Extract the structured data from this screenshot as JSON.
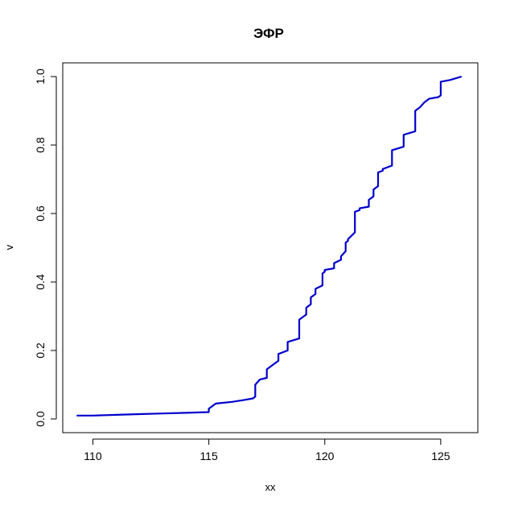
{
  "chart_data": {
    "type": "line",
    "title": "ЭФР",
    "xlabel": "xx",
    "ylabel": "v",
    "xlim": [
      108.7,
      126.6
    ],
    "ylim": [
      -0.04,
      1.04
    ],
    "x_ticks": [
      110,
      115,
      120,
      125
    ],
    "x_tick_labels": [
      "110",
      "115",
      "120",
      "125"
    ],
    "y_ticks": [
      0.0,
      0.2,
      0.4,
      0.6,
      0.8,
      1.0
    ],
    "y_tick_labels": [
      "0.0",
      "0.2",
      "0.4",
      "0.6",
      "0.8",
      "1.0"
    ],
    "grid": false,
    "line_color": "#0000cc",
    "series": [
      {
        "x": [
          109.3,
          110.0,
          111.0,
          112.0,
          113.0,
          114.0,
          115.0,
          115.0,
          115.3,
          116.0,
          116.5,
          116.9,
          117.0,
          117.0,
          117.2,
          117.5,
          117.5,
          117.9,
          118.0,
          118.0,
          118.4,
          118.4,
          118.9,
          118.9,
          119.2,
          119.2,
          119.4,
          119.4,
          119.6,
          119.6,
          119.9,
          119.9,
          120.0,
          120.0,
          120.4,
          120.4,
          120.7,
          120.7,
          120.9,
          120.9,
          121.0,
          121.0,
          121.3,
          121.3,
          121.5,
          121.5,
          121.9,
          121.9,
          122.1,
          122.1,
          122.3,
          122.3,
          122.5,
          122.5,
          122.9,
          122.9,
          123.4,
          123.4,
          123.9,
          123.9,
          124.1,
          124.3,
          124.5,
          124.9,
          125.0,
          125.0,
          125.4,
          125.9
        ],
        "y": [
          0.01,
          0.01,
          0.012,
          0.014,
          0.016,
          0.018,
          0.02,
          0.03,
          0.045,
          0.05,
          0.055,
          0.06,
          0.065,
          0.1,
          0.115,
          0.12,
          0.145,
          0.165,
          0.17,
          0.19,
          0.2,
          0.225,
          0.235,
          0.29,
          0.305,
          0.325,
          0.335,
          0.355,
          0.365,
          0.38,
          0.39,
          0.425,
          0.43,
          0.435,
          0.44,
          0.455,
          0.465,
          0.475,
          0.49,
          0.515,
          0.52,
          0.525,
          0.545,
          0.605,
          0.61,
          0.615,
          0.62,
          0.64,
          0.65,
          0.67,
          0.68,
          0.72,
          0.725,
          0.73,
          0.74,
          0.785,
          0.795,
          0.83,
          0.84,
          0.9,
          0.91,
          0.925,
          0.935,
          0.94,
          0.945,
          0.985,
          0.99,
          1.0
        ]
      }
    ]
  }
}
